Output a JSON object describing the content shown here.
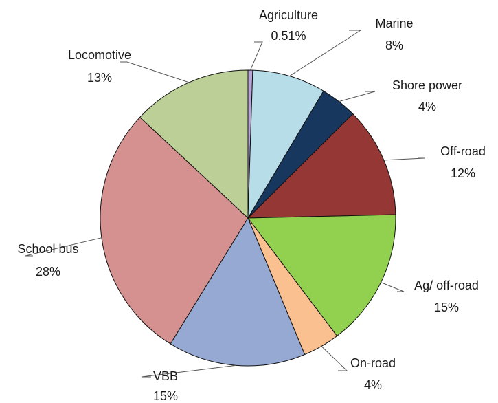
{
  "chart_data": {
    "type": "pie",
    "title": "",
    "slices": [
      {
        "label": "Agriculture",
        "value_text": "0.51%",
        "value": 0.51,
        "color": "#b7a3d6"
      },
      {
        "label": "Marine",
        "value_text": "8%",
        "value": 8,
        "color": "#b7dde8"
      },
      {
        "label": "Shore power",
        "value_text": "4%",
        "value": 4,
        "color": "#17375e"
      },
      {
        "label": "Off-road",
        "value_text": "12%",
        "value": 12,
        "color": "#953735"
      },
      {
        "label": "Ag/ off-road",
        "value_text": "15%",
        "value": 15,
        "color": "#92d050"
      },
      {
        "label": "On-road",
        "value_text": "4%",
        "value": 4,
        "color": "#fac090"
      },
      {
        "label": "VBB",
        "value_text": "15%",
        "value": 15,
        "color": "#95a9d3"
      },
      {
        "label": "School bus",
        "value_text": "28%",
        "value": 28,
        "color": "#d4918f"
      },
      {
        "label": "Locomotive",
        "value_text": "13%",
        "value": 13,
        "color": "#bbcf96"
      }
    ],
    "start_angle_deg": 0,
    "direction": "clockwise",
    "legend": "none"
  }
}
